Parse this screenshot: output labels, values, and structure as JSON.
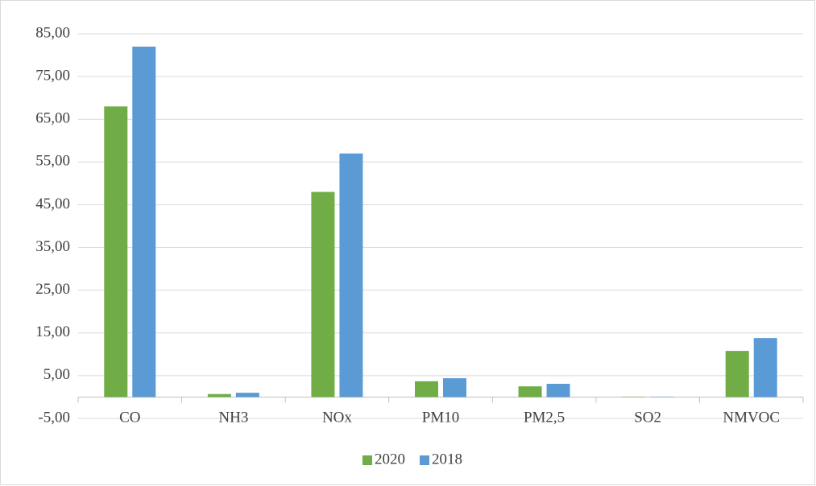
{
  "chart_data": {
    "type": "bar",
    "categories": [
      "CO",
      "NH3",
      "NOx",
      "PM10",
      "PM2,5",
      "SO2",
      "NMVOC"
    ],
    "series": [
      {
        "name": "2020",
        "color": "#70ad47",
        "values": [
          68,
          0.7,
          48,
          3.7,
          2.5,
          0.1,
          10.8
        ]
      },
      {
        "name": "2018",
        "color": "#5b9bd5",
        "values": [
          82,
          1.0,
          57,
          4.4,
          3.1,
          0.1,
          13.8
        ]
      }
    ],
    "ylim": [
      -5,
      85
    ],
    "yticks": [
      {
        "value": -5,
        "label": "-5,00"
      },
      {
        "value": 5,
        "label": "5,00"
      },
      {
        "value": 15,
        "label": "15,00"
      },
      {
        "value": 25,
        "label": "25,00"
      },
      {
        "value": 35,
        "label": "35,00"
      },
      {
        "value": 45,
        "label": "45,00"
      },
      {
        "value": 55,
        "label": "55,00"
      },
      {
        "value": 65,
        "label": "65,00"
      },
      {
        "value": 75,
        "label": "75,00"
      },
      {
        "value": 85,
        "label": "85,00"
      }
    ],
    "grid": true,
    "legend": "bottom"
  }
}
